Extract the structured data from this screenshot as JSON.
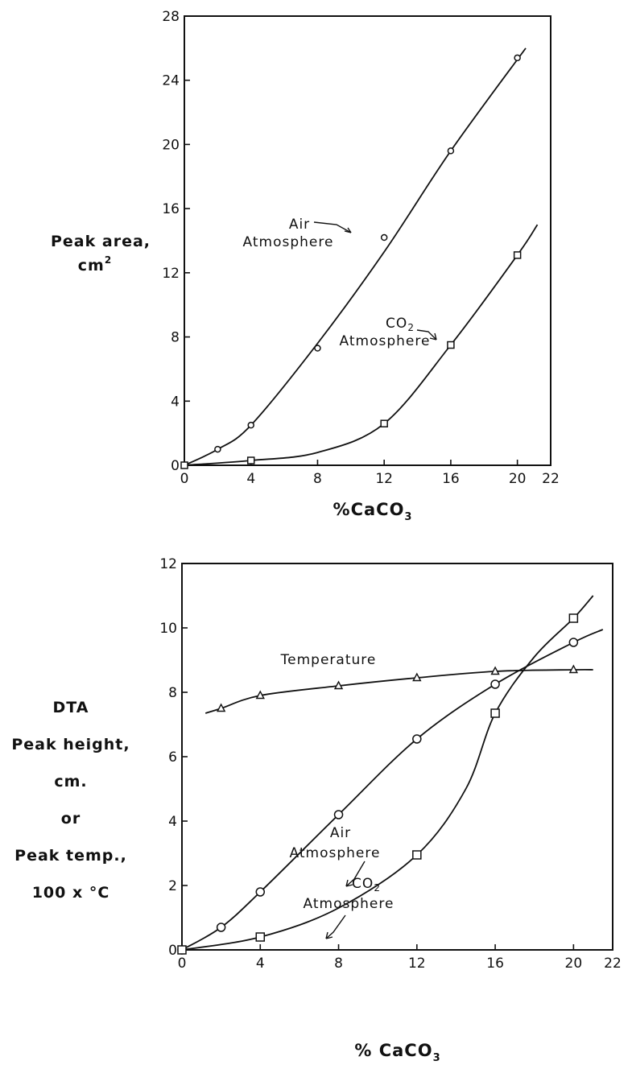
{
  "chart_data": [
    {
      "type": "line",
      "title": "",
      "xlabel": "%CaCO",
      "xlabel_sub": "3",
      "ylabel_lines": [
        "Peak area,",
        "cm"
      ],
      "ylabel_sup": "2",
      "xlim": [
        0,
        22
      ],
      "ylim": [
        0,
        28
      ],
      "xticks": [
        "0",
        "4",
        "8",
        "12",
        "16",
        "20",
        "22"
      ],
      "yticks": [
        "0",
        "4",
        "8",
        "12",
        "16",
        "20",
        "24",
        "28"
      ],
      "xtick_values": [
        0,
        4,
        8,
        12,
        16,
        20,
        22
      ],
      "ytick_values": [
        0,
        4,
        8,
        12,
        16,
        20,
        24,
        28
      ],
      "grid": false,
      "series": [
        {
          "name": "Air Atmosphere",
          "label_lines": [
            "Air",
            "Atmosphere"
          ],
          "marker": "circle",
          "points": [
            [
              0,
              0
            ],
            [
              2,
              1.0
            ],
            [
              4,
              2.5
            ],
            [
              8,
              7.3
            ],
            [
              12,
              14.2
            ],
            [
              16,
              19.6
            ],
            [
              20,
              25.4
            ]
          ],
          "curve": [
            [
              0,
              0
            ],
            [
              2,
              1.0
            ],
            [
              4,
              2.5
            ],
            [
              8,
              7.6
            ],
            [
              12,
              13.3
            ],
            [
              16,
              19.6
            ],
            [
              20.5,
              26.0
            ]
          ]
        },
        {
          "name": "CO2 Atmosphere",
          "label_lines": [
            "CO",
            "Atmosphere"
          ],
          "label_sub": "2",
          "marker": "square",
          "points": [
            [
              0,
              0
            ],
            [
              4,
              0.3
            ],
            [
              12,
              2.6
            ],
            [
              16,
              7.5
            ],
            [
              20,
              13.1
            ]
          ],
          "curve": [
            [
              0,
              0
            ],
            [
              4,
              0.3
            ],
            [
              8,
              0.8
            ],
            [
              12,
              2.6
            ],
            [
              16,
              7.5
            ],
            [
              20,
              13.1
            ],
            [
              21.2,
              15.0
            ]
          ]
        }
      ]
    },
    {
      "type": "line",
      "title": "",
      "xlabel": "% CaCO",
      "xlabel_sub": "3",
      "ylabel_lines": [
        "DTA",
        "Peak height,",
        "cm.",
        "or",
        "Peak temp.,",
        "100 x °C"
      ],
      "xlim": [
        0,
        22
      ],
      "ylim": [
        0,
        12
      ],
      "xticks": [
        "0",
        "4",
        "8",
        "12",
        "16",
        "20",
        "22"
      ],
      "yticks": [
        "0",
        "2",
        "4",
        "6",
        "8",
        "10",
        "12"
      ],
      "xtick_values": [
        0,
        4,
        8,
        12,
        16,
        20,
        22
      ],
      "ytick_values": [
        0,
        2,
        4,
        6,
        8,
        10,
        12
      ],
      "grid": false,
      "series": [
        {
          "name": "Temperature",
          "label_lines": [
            "Temperature"
          ],
          "marker": "triangle",
          "points": [
            [
              2,
              7.5
            ],
            [
              4,
              7.9
            ],
            [
              8,
              8.2
            ],
            [
              12,
              8.45
            ],
            [
              16,
              8.65
            ],
            [
              20,
              8.7
            ]
          ],
          "curve": [
            [
              1.2,
              7.35
            ],
            [
              2,
              7.5
            ],
            [
              4,
              7.9
            ],
            [
              8,
              8.2
            ],
            [
              12,
              8.45
            ],
            [
              16,
              8.65
            ],
            [
              20,
              8.7
            ],
            [
              21,
              8.7
            ]
          ]
        },
        {
          "name": "Air Atmosphere",
          "label_lines": [
            "Air",
            "Atmosphere"
          ],
          "marker": "circle",
          "points": [
            [
              0,
              0
            ],
            [
              2,
              0.7
            ],
            [
              4,
              1.8
            ],
            [
              8,
              4.2
            ],
            [
              12,
              6.55
            ],
            [
              16,
              8.25
            ],
            [
              20,
              9.55
            ]
          ],
          "curve": [
            [
              0,
              0
            ],
            [
              2,
              0.7
            ],
            [
              4,
              1.8
            ],
            [
              8,
              4.2
            ],
            [
              12,
              6.55
            ],
            [
              16,
              8.25
            ],
            [
              20,
              9.55
            ],
            [
              21.5,
              9.95
            ]
          ]
        },
        {
          "name": "CO2 Atmosphere",
          "label_lines": [
            "CO",
            "Atmosphere"
          ],
          "label_sub": "2",
          "marker": "square",
          "points": [
            [
              0,
              0
            ],
            [
              4,
              0.4
            ],
            [
              12,
              2.95
            ],
            [
              16,
              7.35
            ],
            [
              20,
              10.3
            ]
          ],
          "curve": [
            [
              0,
              0
            ],
            [
              4,
              0.4
            ],
            [
              8,
              1.3
            ],
            [
              12,
              2.95
            ],
            [
              14.5,
              5.0
            ],
            [
              16,
              7.35
            ],
            [
              18,
              9.1
            ],
            [
              20,
              10.3
            ],
            [
              21,
              11.0
            ]
          ]
        }
      ]
    }
  ]
}
